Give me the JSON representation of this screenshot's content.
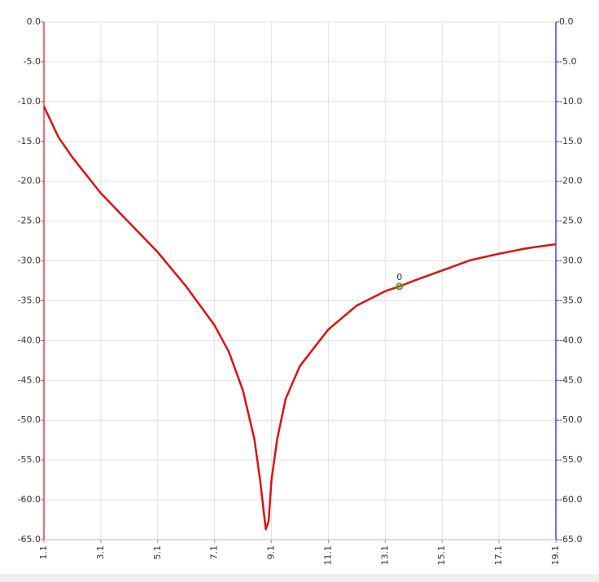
{
  "chart_data": {
    "type": "line",
    "x": [
      1.1,
      1.6,
      2.1,
      3.1,
      4.1,
      5.1,
      6.1,
      7.1,
      7.6,
      8.1,
      8.5,
      8.7,
      8.9,
      9.0,
      9.1,
      9.3,
      9.6,
      10.1,
      11.1,
      12.1,
      13.1,
      13.6,
      14.1,
      15.1,
      16.1,
      17.1,
      18.1,
      19.1
    ],
    "series": [
      {
        "color": "#e01010",
        "values": [
          -10.6,
          -14.4,
          -17.0,
          -21.5,
          -25.2,
          -28.9,
          -33.2,
          -38.1,
          -41.4,
          -46.3,
          -52.4,
          -57.5,
          -63.7,
          -62.7,
          -57.5,
          -52.4,
          -47.3,
          -43.2,
          -38.6,
          -35.6,
          -33.8,
          -33.2,
          -32.5,
          -31.2,
          -29.9,
          -29.1,
          -28.4,
          -27.9
        ]
      }
    ],
    "xlim": [
      1.1,
      19.1
    ],
    "xticks": [
      1.1,
      3.1,
      5.1,
      7.1,
      9.1,
      11.1,
      13.1,
      15.1,
      17.1,
      19.1
    ],
    "ylim": [
      -65,
      0
    ],
    "yticks": [
      {
        "value": 0,
        "label": "0.0"
      },
      {
        "value": -5,
        "label": "-5.0"
      },
      {
        "value": -10,
        "label": "-10.0"
      },
      {
        "value": -15,
        "label": "-15.0"
      },
      {
        "value": -20,
        "label": "-20.0"
      },
      {
        "value": -25,
        "label": "-25.0"
      },
      {
        "value": -30,
        "label": "-30.0"
      },
      {
        "value": -35,
        "label": "-35.0"
      },
      {
        "value": -40,
        "label": "-40.0"
      },
      {
        "value": -45,
        "label": "-45.0"
      },
      {
        "value": -50,
        "label": "-50.0"
      },
      {
        "value": -55,
        "label": "-55.0"
      },
      {
        "value": -60,
        "label": "-60.0"
      },
      {
        "value": -65,
        "label": "-65.0"
      }
    ],
    "y2lim": [
      -65,
      0
    ],
    "y2ticks": [
      {
        "value": 0,
        "label": "0.0"
      },
      {
        "value": -5,
        "label": "-5.0"
      },
      {
        "value": -10,
        "label": "-10.0"
      },
      {
        "value": -15,
        "label": "-15.0"
      },
      {
        "value": -20,
        "label": "-20.0"
      },
      {
        "value": -25,
        "label": "-25.0"
      },
      {
        "value": -30,
        "label": "-30.0"
      },
      {
        "value": -35,
        "label": "-35.0"
      },
      {
        "value": -40,
        "label": "-40.0"
      },
      {
        "value": -45,
        "label": "-45.0"
      },
      {
        "value": -50,
        "label": "-50.0"
      },
      {
        "value": -55,
        "label": "-55.0"
      },
      {
        "value": -60,
        "label": "-60.0"
      },
      {
        "value": -65,
        "label": "-65.0"
      }
    ],
    "y_axis_color": "#e04040",
    "y2_axis_color": "#4040ff",
    "grid": true,
    "markers": [
      {
        "x": 13.6,
        "y": -33.2,
        "label": "0",
        "color": "#44aa22"
      }
    ]
  }
}
